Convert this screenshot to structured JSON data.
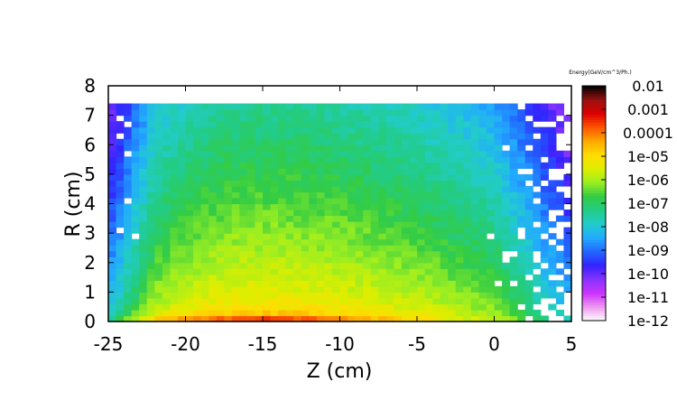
{
  "chart_data": {
    "type": "heatmap",
    "title": "",
    "xlabel": "Z (cm)",
    "ylabel": "R (cm)",
    "xlim": [
      -25,
      5
    ],
    "ylim": [
      0,
      8
    ],
    "x_ticks": [
      "-25",
      "-20",
      "-15",
      "-10",
      "-5",
      "0",
      "5"
    ],
    "y_ticks": [
      "0",
      "1",
      "2",
      "3",
      "4",
      "5",
      "6",
      "7",
      "8"
    ],
    "colorbar": {
      "label": "Energy(GeV/cm^3/Ph.)",
      "scale": "log",
      "range": [
        1e-12,
        0.01
      ],
      "tick_labels": [
        "0.01",
        "0.001",
        "0.0001",
        "1e-05",
        "1e-06",
        "1e-07",
        "1e-08",
        "1e-09",
        "1e-10",
        "1e-11",
        "1e-12"
      ]
    },
    "colors": {
      "palette": [
        "#ffffff",
        "#ee99ee",
        "#cc33ff",
        "#8833ff",
        "#3322ff",
        "#2266ff",
        "#22aaff",
        "#22cccc",
        "#22cc88",
        "#33cc44",
        "#99ee22",
        "#ddee00",
        "#ffdd00",
        "#ffaa00",
        "#ff5500",
        "#dd0000",
        "#991111",
        "#000000"
      ]
    },
    "summary_profile": {
      "peak_Z_cm": -15.5,
      "peak_R_cm": 0.2,
      "peak_energy": 0.001,
      "data_R_max_cm": 7.4,
      "log10_energy_samples": [
        {
          "Z": -15,
          "R": 0.2,
          "value": -3.0
        },
        {
          "Z": -15,
          "R": 1.0,
          "value": -5.0
        },
        {
          "Z": -15,
          "R": 2.0,
          "value": -5.8
        },
        {
          "Z": -15,
          "R": 3.0,
          "value": -6.4
        },
        {
          "Z": -15,
          "R": 4.5,
          "value": -7.0
        },
        {
          "Z": -15,
          "R": 6.0,
          "value": -7.6
        },
        {
          "Z": -15,
          "R": 7.2,
          "value": -8.3
        },
        {
          "Z": -5,
          "R": 0.2,
          "value": -5.5
        },
        {
          "Z": -5,
          "R": 2.0,
          "value": -7.0
        },
        {
          "Z": -5,
          "R": 5.0,
          "value": -8.0
        },
        {
          "Z": -24,
          "R": 3.0,
          "value": -8.5
        },
        {
          "Z": 3,
          "R": 3.0,
          "value": -9.3
        }
      ]
    }
  }
}
